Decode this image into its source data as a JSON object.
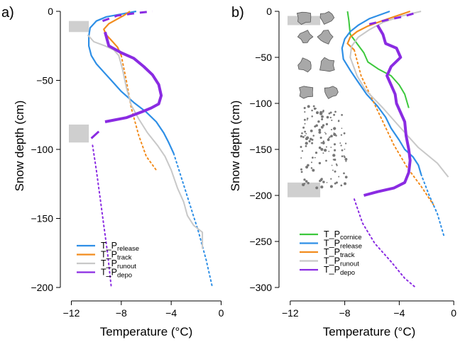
{
  "chart_data": [
    {
      "type": "line",
      "panel_label": "a)",
      "xlabel": "Temperature (°C)",
      "ylabel": "Snow depth (cm)",
      "xlim": [
        -12.2,
        0.2
      ],
      "ylim": [
        -200,
        0
      ],
      "xticks": [
        -12,
        -8,
        -4,
        0
      ],
      "yticks": [
        0,
        -50,
        -100,
        -150,
        -200
      ],
      "legend_position": "bottom-left",
      "legend": [
        {
          "prefix": "T_P",
          "sub": "release",
          "color": "#2E8FE6"
        },
        {
          "prefix": "T_P",
          "sub": "track",
          "color": "#F28C1E"
        },
        {
          "prefix": "T_P",
          "sub": "runout",
          "color": "#C8C8C8"
        },
        {
          "prefix": "T_P",
          "sub": "depo",
          "color": "#8A2BE2"
        }
      ],
      "shaded_bands": [
        {
          "x": [
            -12.2,
            -10.6
          ],
          "y": [
            -7,
            -15
          ]
        },
        {
          "x": [
            -12.2,
            -10.6
          ],
          "y": [
            -82,
            -95
          ]
        }
      ],
      "series": [
        {
          "key": "release",
          "color": "#2E8FE6",
          "width": 2.2,
          "dash": null,
          "points": [
            [
              -6.8,
              0
            ],
            [
              -8,
              -2
            ],
            [
              -9.2,
              -4
            ],
            [
              -10,
              -7
            ],
            [
              -10.5,
              -12
            ],
            [
              -10.6,
              -18
            ],
            [
              -10.6,
              -25
            ],
            [
              -10.4,
              -32
            ],
            [
              -10,
              -38
            ],
            [
              -9.4,
              -44
            ],
            [
              -8.8,
              -50
            ],
            [
              -8,
              -58
            ],
            [
              -7,
              -66
            ],
            [
              -6,
              -73
            ],
            [
              -5.2,
              -80
            ],
            [
              -4.6,
              -88
            ],
            [
              -4.2,
              -95
            ],
            [
              -3.8,
              -103
            ]
          ]
        },
        {
          "key": "release",
          "color": "#2E8FE6",
          "width": 2,
          "dash": "2,4",
          "points": [
            [
              -3.8,
              -103
            ],
            [
              -3.2,
              -120
            ],
            [
              -2.5,
              -140
            ],
            [
              -1.8,
              -160
            ],
            [
              -1.2,
              -180
            ],
            [
              -0.7,
              -200
            ]
          ]
        },
        {
          "key": "track",
          "color": "#F28C1E",
          "width": 2.2,
          "dash": null,
          "points": [
            [
              -7.3,
              0
            ],
            [
              -7.8,
              -3
            ],
            [
              -8.4,
              -6
            ],
            [
              -9,
              -9
            ],
            [
              -9.4,
              -13
            ],
            [
              -9.2,
              -17
            ],
            [
              -8.8,
              -21
            ],
            [
              -8.3,
              -26
            ],
            [
              -8,
              -32
            ]
          ]
        },
        {
          "key": "track",
          "color": "#F28C1E",
          "width": 2,
          "dash": "2,4",
          "points": [
            [
              -8,
              -32
            ],
            [
              -7.6,
              -50
            ],
            [
              -7.2,
              -70
            ],
            [
              -6.6,
              -90
            ],
            [
              -6,
              -105
            ],
            [
              -5.2,
              -115
            ]
          ]
        },
        {
          "key": "runout",
          "color": "#C8C8C8",
          "width": 2,
          "dash": null,
          "points": [
            [
              -10.7,
              -17
            ],
            [
              -10.2,
              -22
            ],
            [
              -9.3,
              -25
            ],
            [
              -8.6,
              -28
            ],
            [
              -8.2,
              -32
            ],
            [
              -7.9,
              -42
            ],
            [
              -7.6,
              -55
            ],
            [
              -7.2,
              -68
            ],
            [
              -6.6,
              -78
            ],
            [
              -5.9,
              -88
            ],
            [
              -5.1,
              -97
            ],
            [
              -4.5,
              -105
            ],
            [
              -4,
              -115
            ],
            [
              -3.5,
              -128
            ],
            [
              -3,
              -138
            ],
            [
              -2.7,
              -148
            ],
            [
              -2.2,
              -155
            ],
            [
              -1.5,
              -160
            ],
            [
              -1.5,
              -172
            ]
          ]
        },
        {
          "key": "depo",
          "color": "#8A2BE2",
          "width": 4,
          "dash": null,
          "points": [
            [
              -9.3,
              -15
            ],
            [
              -9,
              -25
            ],
            [
              -8,
              -30
            ],
            [
              -7,
              -34
            ],
            [
              -6.2,
              -40
            ],
            [
              -5.5,
              -46
            ],
            [
              -5,
              -53
            ],
            [
              -4.8,
              -61
            ],
            [
              -5,
              -67
            ],
            [
              -5.6,
              -70
            ],
            [
              -6.4,
              -73
            ],
            [
              -7.6,
              -77
            ],
            [
              -9.3,
              -80
            ]
          ]
        },
        {
          "key": "depo",
          "color": "#8A2BE2",
          "width": 3,
          "dash": "10,8",
          "points": [
            [
              -9.5,
              -7
            ],
            [
              -8.3,
              -3
            ],
            [
              -6.5,
              -1
            ],
            [
              -5.5,
              0
            ]
          ]
        },
        {
          "key": "depo",
          "color": "#8A2BE2",
          "width": 3,
          "dash": null,
          "points": [
            [
              -10.4,
              -92
            ],
            [
              -9.8,
              -87
            ]
          ]
        },
        {
          "key": "depo",
          "color": "#8A2BE2",
          "width": 2,
          "dash": "2,4",
          "points": [
            [
              -10.3,
              -97
            ],
            [
              -10,
              -115
            ],
            [
              -9.7,
              -135
            ],
            [
              -9.4,
              -155
            ],
            [
              -9.1,
              -175
            ],
            [
              -8.8,
              -200
            ]
          ]
        }
      ]
    },
    {
      "type": "line",
      "panel_label": "b)",
      "xlabel": "Temperature (°C)",
      "ylabel": "Snow depth (cm)",
      "xlim": [
        -12.2,
        0.2
      ],
      "ylim": [
        -300,
        0
      ],
      "xticks": [
        -12,
        -8,
        -4,
        0
      ],
      "yticks": [
        0,
        -50,
        -100,
        -150,
        -200,
        -250,
        -300
      ],
      "legend_position": "bottom-left",
      "legend": [
        {
          "prefix": "T_P",
          "sub": "cornice",
          "color": "#3CC83C"
        },
        {
          "prefix": "T_P",
          "sub": "release",
          "color": "#2E8FE6"
        },
        {
          "prefix": "T_P",
          "sub": "track",
          "color": "#F28C1E"
        },
        {
          "prefix": "T_P",
          "sub": "runout",
          "color": "#C8C8C8"
        },
        {
          "prefix": "T_P",
          "sub": "depo",
          "color": "#8A2BE2"
        }
      ],
      "shaded_bands": [
        {
          "x": [
            -12.2,
            -9.8
          ],
          "y": [
            -5,
            -15
          ]
        },
        {
          "x": [
            -12.2,
            -9.8
          ],
          "y": [
            -186,
            -202
          ]
        }
      ],
      "series": [
        {
          "key": "cornice",
          "color": "#3CC83C",
          "width": 2,
          "dash": null,
          "points": [
            [
              -7.8,
              0
            ],
            [
              -7.7,
              -10
            ],
            [
              -7.6,
              -25
            ],
            [
              -7.1,
              -35
            ],
            [
              -6.6,
              -45
            ],
            [
              -6.3,
              -55
            ],
            [
              -5.5,
              -63
            ],
            [
              -4.6,
              -70
            ],
            [
              -4,
              -80
            ],
            [
              -3.6,
              -90
            ],
            [
              -3.3,
              -105
            ]
          ]
        },
        {
          "key": "release",
          "color": "#2E8FE6",
          "width": 2.2,
          "dash": null,
          "points": [
            [
              -4.7,
              0
            ],
            [
              -6.2,
              -8
            ],
            [
              -7,
              -15
            ],
            [
              -7.6,
              -22
            ],
            [
              -8,
              -30
            ],
            [
              -8.2,
              -40
            ],
            [
              -8.1,
              -52
            ],
            [
              -7.6,
              -64
            ],
            [
              -7.1,
              -75
            ],
            [
              -6.4,
              -90
            ],
            [
              -5.6,
              -103
            ],
            [
              -5,
              -115
            ],
            [
              -4.6,
              -127
            ],
            [
              -4,
              -140
            ],
            [
              -3.6,
              -150
            ],
            [
              -3,
              -158
            ],
            [
              -2.6,
              -167
            ],
            [
              -2.4,
              -177
            ]
          ]
        },
        {
          "key": "release",
          "color": "#2E8FE6",
          "width": 2,
          "dash": "2,4",
          "points": [
            [
              -2.4,
              -177
            ],
            [
              -1.8,
              -200
            ],
            [
              -1.2,
              -220
            ],
            [
              -0.7,
              -245
            ]
          ]
        },
        {
          "key": "track",
          "color": "#F28C1E",
          "width": 2.2,
          "dash": null,
          "points": [
            [
              -3.2,
              0
            ],
            [
              -4,
              -4
            ],
            [
              -5.2,
              -10
            ],
            [
              -6.3,
              -16
            ],
            [
              -7.1,
              -22
            ],
            [
              -7.6,
              -28
            ],
            [
              -7.8,
              -35
            ],
            [
              -7.3,
              -42
            ]
          ]
        },
        {
          "key": "track",
          "color": "#F28C1E",
          "width": 2,
          "dash": "2,4",
          "points": [
            [
              -7.3,
              -42
            ],
            [
              -6.8,
              -70
            ],
            [
              -6,
              -95
            ],
            [
              -5.2,
              -120
            ],
            [
              -4.4,
              -145
            ],
            [
              -3.4,
              -170
            ],
            [
              -2.4,
              -190
            ],
            [
              -1.5,
              -210
            ]
          ]
        },
        {
          "key": "runout",
          "color": "#C8C8C8",
          "width": 2,
          "dash": null,
          "points": [
            [
              -2.4,
              0
            ],
            [
              -3.8,
              -5
            ],
            [
              -5.2,
              -12
            ],
            [
              -6.2,
              -20
            ],
            [
              -7,
              -28
            ],
            [
              -7.5,
              -38
            ],
            [
              -7.6,
              -50
            ],
            [
              -7.1,
              -70
            ],
            [
              -6.5,
              -85
            ],
            [
              -5.2,
              -105
            ],
            [
              -4,
              -125
            ],
            [
              -2.6,
              -148
            ],
            [
              -1.2,
              -165
            ],
            [
              -0.4,
              -180
            ]
          ]
        },
        {
          "key": "depo",
          "color": "#8A2BE2",
          "width": 4,
          "dash": null,
          "points": [
            [
              -5.6,
              -15
            ],
            [
              -5.2,
              -25
            ],
            [
              -5,
              -35
            ],
            [
              -4.2,
              -40
            ],
            [
              -3.9,
              -50
            ],
            [
              -4.6,
              -60
            ],
            [
              -4.9,
              -70
            ],
            [
              -4.6,
              -80
            ],
            [
              -4.3,
              -90
            ],
            [
              -4.2,
              -100
            ],
            [
              -3.9,
              -110
            ],
            [
              -3.6,
              -120
            ],
            [
              -3.5,
              -135
            ],
            [
              -3.3,
              -150
            ],
            [
              -3.2,
              -162
            ],
            [
              -3.3,
              -175
            ],
            [
              -3.6,
              -186
            ],
            [
              -4.4,
              -192
            ],
            [
              -5.6,
              -196
            ],
            [
              -6.6,
              -200
            ]
          ]
        },
        {
          "key": "depo",
          "color": "#8A2BE2",
          "width": 3,
          "dash": "10,8",
          "points": [
            [
              -6.2,
              -14
            ],
            [
              -4.8,
              -9
            ],
            [
              -3.8,
              -6
            ],
            [
              -2.6,
              -1
            ]
          ]
        },
        {
          "key": "depo",
          "color": "#8A2BE2",
          "width": 2,
          "dash": "2,4",
          "points": [
            [
              -7.3,
              -204
            ],
            [
              -6.7,
              -230
            ],
            [
              -5.8,
              -252
            ],
            [
              -4.6,
              -272
            ],
            [
              -3.6,
              -290
            ],
            [
              -2.8,
              -300
            ]
          ]
        }
      ]
    }
  ]
}
